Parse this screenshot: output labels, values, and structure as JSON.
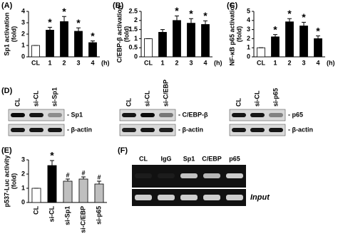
{
  "chart_data": [
    {
      "type": "bar",
      "panel": "(A)",
      "ylabel": [
        "Sp1 activation",
        "(fold)"
      ],
      "xunit": "(h)",
      "categories": [
        "CL",
        "1",
        "2",
        "3",
        "4"
      ],
      "values": [
        1,
        2.35,
        3.1,
        2.25,
        1.25
      ],
      "errors": [
        0,
        0.25,
        0.45,
        0.3,
        0.15
      ],
      "colors": [
        "#ffffff",
        "#000000",
        "#000000",
        "#000000",
        "#000000"
      ],
      "markers": [
        null,
        "*",
        "*",
        "*",
        "*"
      ],
      "ylim": [
        0,
        4
      ],
      "yticks": [
        0,
        1,
        2,
        3,
        4
      ]
    },
    {
      "type": "bar",
      "panel": "(B)",
      "ylabel": [
        "C/EBP-β activation",
        "(fold)"
      ],
      "xunit": "(h)",
      "categories": [
        "CL",
        "1",
        "2",
        "3",
        "4"
      ],
      "values": [
        1,
        1.35,
        2.0,
        1.85,
        1.78
      ],
      "errors": [
        0,
        0.15,
        0.25,
        0.25,
        0.2
      ],
      "colors": [
        "#ffffff",
        "#000000",
        "#000000",
        "#000000",
        "#000000"
      ],
      "markers": [
        null,
        null,
        "*",
        "*",
        "*"
      ],
      "ylim": [
        0,
        2.5
      ],
      "yticks": [
        0,
        0.5,
        1,
        1.5,
        2,
        2.5
      ]
    },
    {
      "type": "bar",
      "panel": "(C)",
      "ylabel": [
        "NF-κB p65 activation",
        "(fold)"
      ],
      "xunit": "(h)",
      "categories": [
        "CL",
        "1",
        "2",
        "3",
        "4"
      ],
      "values": [
        1,
        2.2,
        3.85,
        3.4,
        2.0
      ],
      "errors": [
        0,
        0.25,
        0.35,
        0.4,
        0.3
      ],
      "colors": [
        "#ffffff",
        "#000000",
        "#000000",
        "#000000",
        "#000000"
      ],
      "markers": [
        null,
        "*",
        "*",
        "*",
        "*"
      ],
      "ylim": [
        0,
        5
      ],
      "yticks": [
        0,
        1,
        2,
        3,
        4,
        5
      ]
    },
    {
      "type": "bar",
      "panel": "(E)",
      "ylabel": [
        "p537-Luc activity",
        "(fold)"
      ],
      "categories": [
        "CL",
        "si-CL",
        "si-Sp1",
        "si-C/EBP",
        "si-p65"
      ],
      "values": [
        1,
        2.6,
        1.5,
        1.65,
        1.3
      ],
      "errors": [
        0,
        0.35,
        0.15,
        0.15,
        0.2
      ],
      "colors": [
        "#ffffff",
        "#000000",
        "#bfbfbf",
        "#bfbfbf",
        "#bfbfbf"
      ],
      "markers": [
        null,
        "*",
        "#",
        "#",
        "#"
      ],
      "ylim": [
        0,
        3
      ],
      "yticks": [
        0,
        1,
        2,
        3
      ]
    }
  ],
  "blots": {
    "panel": "(D)",
    "groups": [
      {
        "lanes": [
          "CL",
          "si-CL",
          "si-Sp1"
        ],
        "proteins": [
          "- Sp1",
          "- β-actin"
        ]
      },
      {
        "lanes": [
          "CL",
          "si-CL",
          "si-C/EBP"
        ],
        "proteins": [
          "- C/EBP-β",
          "- β-actin"
        ]
      },
      {
        "lanes": [
          "CL",
          "si-CL",
          "si-p65"
        ],
        "proteins": [
          "- p65",
          "- β-actin"
        ]
      }
    ]
  },
  "gel": {
    "panel": "(F)",
    "lanes": [
      "CL",
      "IgG",
      "Sp1",
      "C/EBP",
      "p65"
    ],
    "input": "Input"
  }
}
